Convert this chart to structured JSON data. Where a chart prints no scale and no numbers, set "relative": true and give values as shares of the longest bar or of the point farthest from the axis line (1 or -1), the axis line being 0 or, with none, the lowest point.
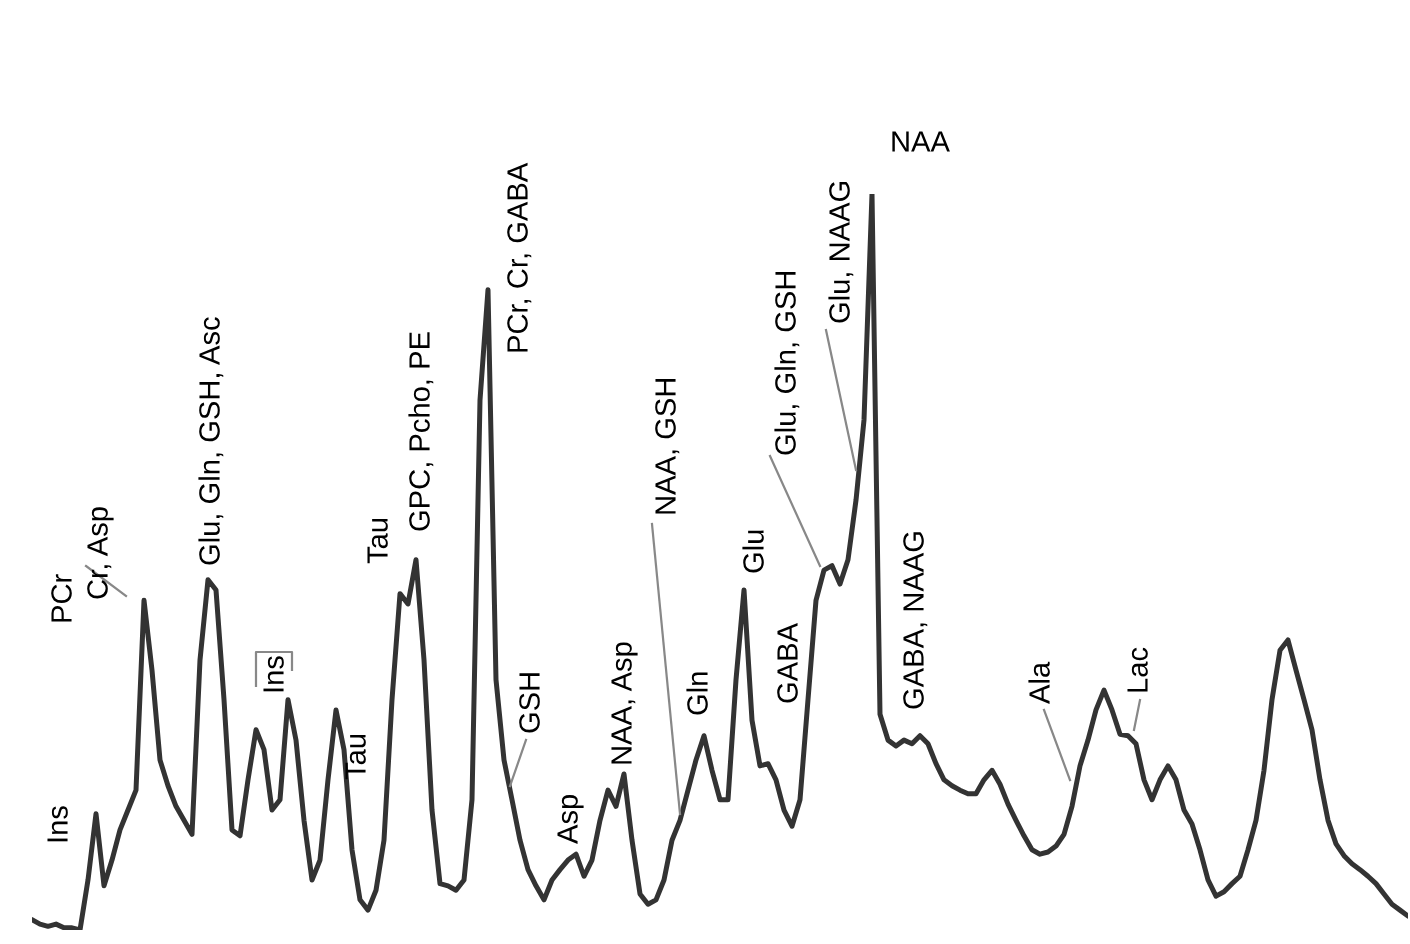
{
  "chart_data": {
    "type": "line",
    "relative": true,
    "marker": "none",
    "line_style": "solid",
    "categories": [
      null,
      null,
      null,
      null,
      null,
      null,
      null,
      null,
      null,
      null,
      null,
      null,
      null,
      null,
      null,
      null,
      null,
      null,
      null,
      null,
      null,
      null,
      null,
      null,
      null,
      null,
      null,
      null,
      null,
      null,
      null,
      null,
      null,
      null,
      null,
      null,
      null,
      null,
      null,
      null,
      null,
      null,
      null,
      null,
      null,
      null,
      null,
      null,
      null,
      null,
      null,
      null,
      null,
      null,
      null,
      null,
      null,
      null,
      null,
      null,
      null,
      null,
      null,
      null,
      null,
      null,
      null,
      null,
      null,
      null,
      null,
      null,
      null,
      null,
      null,
      null,
      null,
      null,
      null,
      null,
      null,
      null,
      null,
      null,
      null,
      null,
      null,
      null,
      null,
      null,
      null,
      null,
      null,
      null,
      null,
      null,
      null,
      null,
      null,
      null,
      null,
      null,
      null,
      null,
      null,
      null,
      null,
      null,
      null,
      null,
      null,
      null,
      null,
      null,
      null,
      null,
      null,
      null,
      null,
      null,
      null,
      null,
      null,
      null,
      null,
      null,
      null,
      null,
      null,
      null,
      null,
      null,
      null,
      null,
      null,
      null,
      null,
      null,
      null,
      null,
      null,
      null,
      null,
      null,
      null,
      null,
      null,
      null,
      null,
      null,
      null,
      null,
      null,
      null,
      null,
      null,
      null,
      null,
      null,
      null,
      null,
      null,
      null,
      null,
      null,
      null,
      null,
      null,
      null,
      null,
      null,
      null,
      null
    ],
    "series": [
      {
        "color": "#333333",
        "values": [
          0.014,
          0.008,
          0.005,
          0.008,
          0.003,
          0.003,
          0,
          0.068,
          0.158,
          0.06,
          0.095,
          0.136,
          0.163,
          0.19,
          0.448,
          0.353,
          0.231,
          0.196,
          0.168,
          0.149,
          0.13,
          0.367,
          0.476,
          0.462,
          0.313,
          0.136,
          0.128,
          0.204,
          0.272,
          0.245,
          0.163,
          0.177,
          0.313,
          0.258,
          0.149,
          0.068,
          0.095,
          0.204,
          0.299,
          0.245,
          0.109,
          0.041,
          0.027,
          0.054,
          0.122,
          0.313,
          0.457,
          0.443,
          0.503,
          0.367,
          0.163,
          0.063,
          0.06,
          0.054,
          0.068,
          0.177,
          0.72,
          0.87,
          0.34,
          0.231,
          0.177,
          0.122,
          0.082,
          0.06,
          0.041,
          0.068,
          0.082,
          0.095,
          0.103,
          0.073,
          0.095,
          0.149,
          0.19,
          0.168,
          0.212,
          0.122,
          0.049,
          0.035,
          0.041,
          0.068,
          0.122,
          0.149,
          0.19,
          0.231,
          0.264,
          0.217,
          0.177,
          0.177,
          0.34,
          0.462,
          0.285,
          0.223,
          0.226,
          0.204,
          0.163,
          0.141,
          0.177,
          0.313,
          0.448,
          0.489,
          0.495,
          0.47,
          0.503,
          0.584,
          0.693,
          1,
          0.293,
          0.258,
          0.25,
          0.258,
          0.253,
          0.264,
          0.253,
          0.226,
          0.204,
          0.196,
          0.19,
          0.185,
          0.185,
          0.204,
          0.217,
          0.198,
          0.171,
          0.149,
          0.128,
          0.109,
          0.103,
          0.106,
          0.114,
          0.13,
          0.168,
          0.223,
          0.258,
          0.299,
          0.326,
          0.299,
          0.266,
          0.264,
          0.253,
          0.204,
          0.177,
          0.204,
          0.223,
          0.204,
          0.163,
          0.144,
          0.109,
          0.068,
          0.046,
          0.052,
          0.063,
          0.073,
          0.109,
          0.149,
          0.217,
          0.313,
          0.38,
          0.394,
          0.353,
          0.313,
          0.272,
          0.204,
          0.149,
          0.117,
          0.101,
          0.09,
          0.082,
          0.073,
          0.063,
          0.049,
          0.035,
          0.027,
          0.019
        ]
      }
    ],
    "annotations": [
      "Ins",
      "PCr",
      "Cr, Asp",
      "Glu, Gln, GSH, Asc",
      "Ins",
      "Tau",
      "Tau",
      "GPC, Pcho, PE",
      "PCr, Cr, GABA",
      "GSH",
      "Asp",
      "NAA, Asp",
      "NAA, GSH",
      "Gln",
      "Glu",
      "GABA",
      "Glu, Gln, GSH",
      "Glu, NAAG",
      "NAA",
      "GABA, NAAG",
      "Ala",
      "Lac"
    ]
  }
}
